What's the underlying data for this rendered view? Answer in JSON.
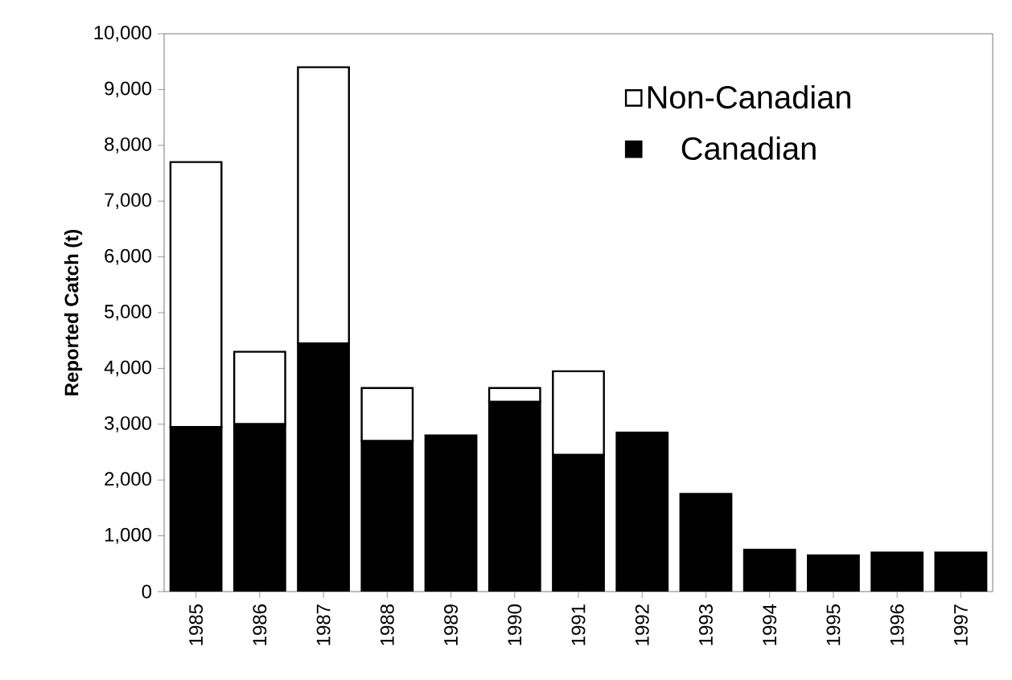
{
  "chart_data": {
    "type": "bar",
    "stacked": true,
    "ylabel": "Reported Catch (t)",
    "categories": [
      "1985",
      "1986",
      "1987",
      "1988",
      "1989",
      "1990",
      "1991",
      "1992",
      "1993",
      "1994",
      "1995",
      "1996",
      "1997"
    ],
    "series": [
      {
        "name": "Canadian",
        "color": "#000000",
        "values": [
          2950,
          3000,
          4450,
          2700,
          2800,
          3400,
          2450,
          2850,
          1750,
          750,
          650,
          700,
          700
        ]
      },
      {
        "name": "Non-Canadian",
        "color": "#ffffff",
        "values": [
          4750,
          1300,
          4950,
          950,
          0,
          250,
          1500,
          0,
          0,
          0,
          0,
          0,
          0
        ]
      }
    ],
    "ylim": [
      0,
      10000
    ],
    "yticks": [
      0,
      {
        "value": 1000,
        "label": "1,000"
      },
      {
        "value": 2000,
        "label": "2,000"
      },
      {
        "value": 3000,
        "label": "3,000"
      },
      {
        "value": 4000,
        "label": "4,000"
      },
      {
        "value": 5000,
        "label": "5,000"
      },
      {
        "value": 6000,
        "label": "6,000"
      },
      {
        "value": 7000,
        "label": "7,000"
      },
      {
        "value": 8000,
        "label": "8,000"
      },
      {
        "value": 9000,
        "label": "9,000"
      },
      {
        "value": 10000,
        "label": "10,000"
      }
    ],
    "grid": false,
    "legend": "top right"
  }
}
